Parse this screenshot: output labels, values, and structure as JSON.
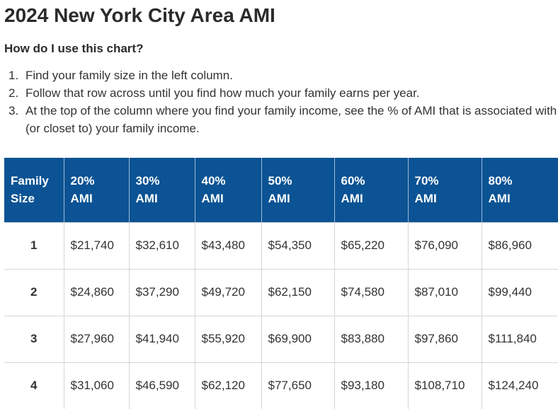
{
  "page": {
    "title": "2024 New York City Area AMI",
    "subheading": "How do I use this chart?"
  },
  "instructions": [
    {
      "num": "1.",
      "text": "Find your family size in the left column."
    },
    {
      "num": "2.",
      "text": "Follow that row across until you find how much your family earns per year."
    },
    {
      "num": "3.",
      "text": "At the top of the column where you find your family income, see the % of AMI that is associated with (or closet to) your family income."
    }
  ],
  "table": {
    "headers": [
      {
        "line1": "Family",
        "line2": "Size"
      },
      {
        "line1": "20%",
        "line2": "AMI"
      },
      {
        "line1": "30%",
        "line2": "AMI"
      },
      {
        "line1": "40%",
        "line2": "AMI"
      },
      {
        "line1": "50%",
        "line2": "AMI"
      },
      {
        "line1": "60%",
        "line2": "AMI"
      },
      {
        "line1": "70%",
        "line2": "AMI"
      },
      {
        "line1": "80%",
        "line2": "AMI"
      }
    ],
    "rows": [
      [
        "1",
        "$21,740",
        "$32,610",
        "$43,480",
        "$54,350",
        "$65,220",
        "$76,090",
        "$86,960"
      ],
      [
        "2",
        "$24,860",
        "$37,290",
        "$49,720",
        "$62,150",
        "$74,580",
        "$87,010",
        "$99,440"
      ],
      [
        "3",
        "$27,960",
        "$41,940",
        "$55,920",
        "$69,900",
        "$83,880",
        "$97,860",
        "$111,840"
      ],
      [
        "4",
        "$31,060",
        "$46,590",
        "$62,120",
        "$77,650",
        "$93,180",
        "$108,710",
        "$124,240"
      ]
    ]
  },
  "colors": {
    "header_bg": "#0b5394",
    "header_text": "#ffffff",
    "border": "#d6d6d6"
  }
}
